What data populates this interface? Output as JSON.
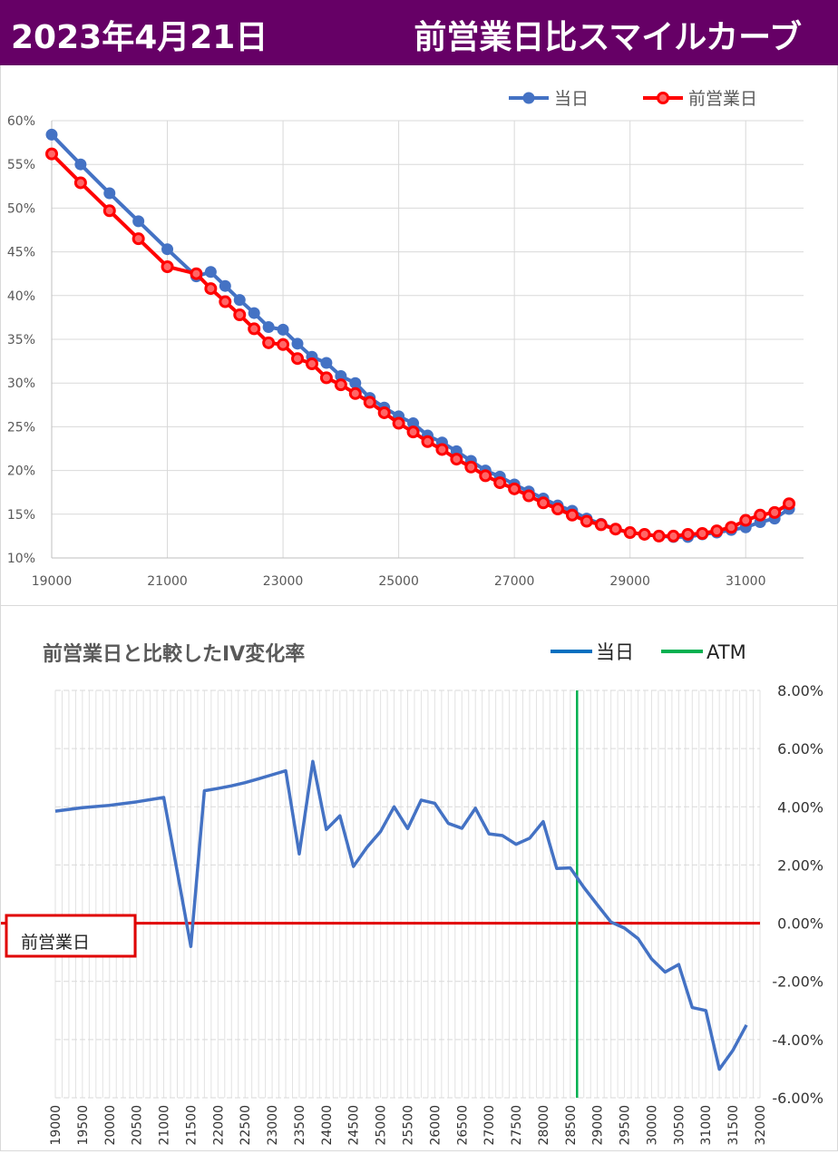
{
  "header": {
    "date": "2023年4月21日",
    "title": "前営業日比スマイルカーブ"
  },
  "colors": {
    "header_bg": "#660066",
    "today": "#4472C4",
    "prev": "#FF0000",
    "atm": "#00B050",
    "zero_line": "#E00000",
    "change": "#4472C4"
  },
  "chart_data": [
    {
      "type": "line",
      "title": "",
      "xlim": [
        19000,
        32000
      ],
      "ylim": [
        0.1,
        0.6
      ],
      "x_ticks": [
        "19000",
        "21000",
        "23000",
        "25000",
        "27000",
        "29000",
        "31000"
      ],
      "y_ticks": [
        "10%",
        "15%",
        "20%",
        "25%",
        "30%",
        "35%",
        "40%",
        "45%",
        "50%",
        "55%",
        "60%"
      ],
      "legend_position": "top-right",
      "grid": true,
      "series": [
        {
          "name": "当日",
          "color": "#4472C4",
          "x": [
            19000,
            19500,
            20000,
            20500,
            21000,
            21500,
            21750,
            22000,
            22250,
            22500,
            22750,
            23000,
            23250,
            23500,
            23750,
            24000,
            24250,
            24500,
            24750,
            25000,
            25250,
            25500,
            25750,
            26000,
            26250,
            26500,
            26750,
            27000,
            27250,
            27500,
            27750,
            28000,
            28250,
            28500,
            28750,
            29000,
            29250,
            29500,
            29750,
            30000,
            30250,
            30500,
            30750,
            31000,
            31250,
            31500,
            31750
          ],
          "y": [
            0.584,
            0.55,
            0.517,
            0.485,
            0.453,
            0.422,
            0.427,
            0.411,
            0.395,
            0.38,
            0.364,
            0.361,
            0.345,
            0.33,
            0.323,
            0.308,
            0.3,
            0.283,
            0.272,
            0.262,
            0.254,
            0.24,
            0.232,
            0.222,
            0.211,
            0.2,
            0.193,
            0.184,
            0.176,
            0.168,
            0.16,
            0.154,
            0.145,
            0.139,
            0.133,
            0.129,
            0.127,
            0.125,
            0.124,
            0.124,
            0.127,
            0.129,
            0.132,
            0.135,
            0.141,
            0.145,
            0.156
          ]
        },
        {
          "name": "前営業日",
          "color": "#FF0000",
          "x": [
            19000,
            19500,
            20000,
            20500,
            21000,
            21500,
            21750,
            22000,
            22250,
            22500,
            22750,
            23000,
            23250,
            23500,
            23750,
            24000,
            24250,
            24500,
            24750,
            25000,
            25250,
            25500,
            25750,
            26000,
            26250,
            26500,
            26750,
            27000,
            27250,
            27500,
            27750,
            28000,
            28250,
            28500,
            28750,
            29000,
            29250,
            29500,
            29750,
            30000,
            30250,
            30500,
            30750,
            31000,
            31250,
            31500,
            31750
          ],
          "y": [
            0.562,
            0.529,
            0.497,
            0.465,
            0.433,
            0.425,
            0.408,
            0.393,
            0.378,
            0.362,
            0.346,
            0.344,
            0.328,
            0.322,
            0.306,
            0.298,
            0.288,
            0.278,
            0.266,
            0.254,
            0.244,
            0.233,
            0.224,
            0.213,
            0.204,
            0.194,
            0.186,
            0.179,
            0.171,
            0.163,
            0.156,
            0.149,
            0.142,
            0.138,
            0.133,
            0.129,
            0.127,
            0.125,
            0.125,
            0.127,
            0.128,
            0.131,
            0.135,
            0.143,
            0.149,
            0.152,
            0.162
          ]
        }
      ]
    },
    {
      "type": "line",
      "title": "前営業日と比較したIV変化率",
      "xlim": [
        19000,
        32000
      ],
      "ylim": [
        -0.06,
        0.08
      ],
      "x_ticks": [
        "19000",
        "19500",
        "20000",
        "20500",
        "21000",
        "21500",
        "22000",
        "22500",
        "23000",
        "23500",
        "24000",
        "24500",
        "25000",
        "25500",
        "26000",
        "26500",
        "27000",
        "27500",
        "28000",
        "28500",
        "29000",
        "29500",
        "30000",
        "30500",
        "31000",
        "31500",
        "32000"
      ],
      "y_ticks": [
        "8.00%",
        "6.00%",
        "4.00%",
        "2.00%",
        "0.00%",
        "-2.00%",
        "-4.00%",
        "-6.00%"
      ],
      "legend_position": "top-right",
      "grid": true,
      "series": [
        {
          "name": "当日",
          "color": "#4472C4",
          "x": [
            19000,
            19500,
            20000,
            20500,
            21000,
            21500,
            21750,
            22000,
            22250,
            22500,
            22750,
            23000,
            23250,
            23500,
            23750,
            24000,
            24250,
            24500,
            24750,
            25000,
            25250,
            25500,
            25750,
            26000,
            26250,
            26500,
            26750,
            27000,
            27250,
            27500,
            27750,
            28000,
            28250,
            28500,
            28750,
            29000,
            29250,
            29500,
            29750,
            30000,
            30250,
            30500,
            30750,
            31000,
            31250,
            31500,
            31750
          ],
          "y": [
            0.0385,
            0.0397,
            0.0405,
            0.0417,
            0.0432,
            -0.008,
            0.0455,
            0.0463,
            0.0472,
            0.0483,
            0.0496,
            0.051,
            0.0524,
            0.0238,
            0.0556,
            0.0322,
            0.0369,
            0.0195,
            0.0261,
            0.0315,
            0.04,
            0.0325,
            0.0423,
            0.0412,
            0.0343,
            0.0326,
            0.0395,
            0.0307,
            0.0301,
            0.0271,
            0.0292,
            0.0349,
            0.0188,
            0.019,
            0.0123,
            0.0063,
            0.0004,
            -0.0017,
            -0.0053,
            -0.0123,
            -0.0168,
            -0.0142,
            -0.029,
            -0.03,
            -0.0502,
            -0.0437,
            -0.035
          ]
        }
      ],
      "atm": {
        "name": "ATM",
        "x": 28625,
        "color": "#00B050"
      },
      "baseline": {
        "label": "前営業日",
        "y": 0.0
      }
    }
  ]
}
